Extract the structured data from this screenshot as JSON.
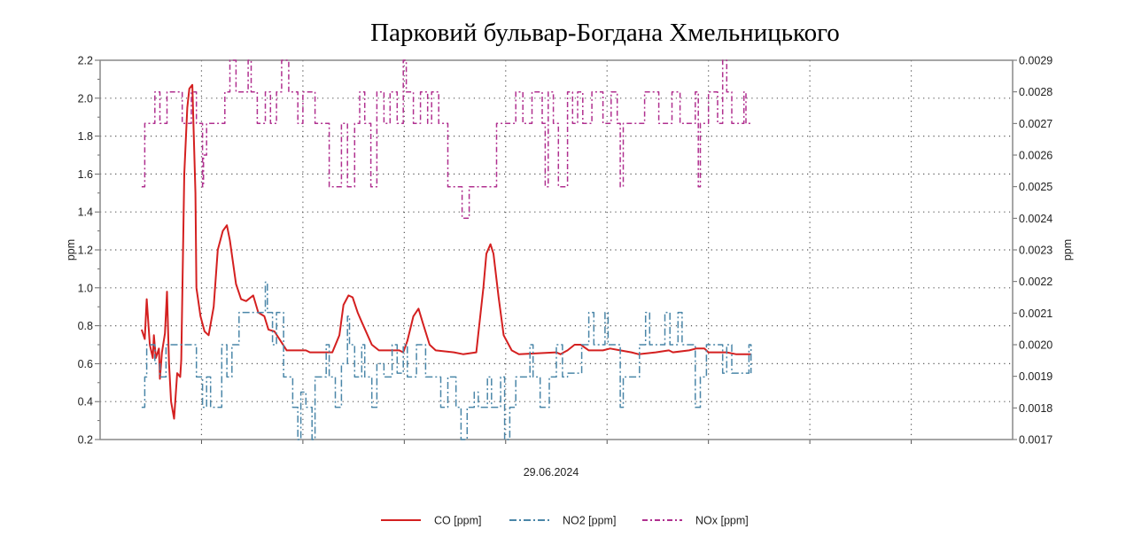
{
  "chart_data": {
    "type": "line",
    "title": "Парковий бульвар-Богдана Хмельницького",
    "xlabel": "29.06.2024",
    "ylabel": "ppm",
    "ylabel_right": "ppm",
    "xlim": [
      0,
      900
    ],
    "ylim": [
      0.2,
      2.2
    ],
    "ylim_right": [
      0.0017,
      0.0029
    ],
    "yticks": [
      "0.2",
      "0.4",
      "0.6",
      "0.8",
      "1.0",
      "1.2",
      "1.4",
      "1.6",
      "1.8",
      "2.0",
      "2.2"
    ],
    "yticks_right": [
      "0.0017",
      "0.0018",
      "0.0019",
      "0.0020",
      "0.0021",
      "0.0022",
      "0.0023",
      "0.0024",
      "0.0025",
      "0.0026",
      "0.0027",
      "0.0028",
      "0.0029"
    ],
    "grid": true,
    "legend_position": "bottom",
    "series": [
      {
        "name": "CO [ppm]",
        "axis": "left",
        "style": "solid",
        "color": "#d42020",
        "step": false,
        "x": [
          41,
          44,
          46,
          49,
          52,
          53,
          55,
          58,
          59,
          61,
          64,
          66,
          68,
          70,
          73,
          76,
          79,
          80,
          83,
          86,
          88,
          91,
          94,
          95,
          99,
          103,
          107,
          112,
          116,
          121,
          125,
          128,
          134,
          139,
          144,
          151,
          156,
          162,
          166,
          172,
          178,
          184,
          203,
          207,
          229,
          236,
          240,
          245,
          249,
          254,
          258,
          268,
          275,
          295,
          299,
          303,
          309,
          314,
          318,
          325,
          331,
          349,
          358,
          371,
          378,
          381,
          385,
          388,
          393,
          398,
          406,
          413,
          450,
          454,
          461,
          468,
          474,
          482,
          496,
          503,
          513,
          524,
          531,
          548,
          561,
          565,
          581,
          588,
          596,
          600,
          618,
          627,
          642
        ],
        "y": [
          0.78,
          0.73,
          0.94,
          0.7,
          0.63,
          0.75,
          0.63,
          0.68,
          0.52,
          0.66,
          0.76,
          0.98,
          0.6,
          0.4,
          0.31,
          0.55,
          0.53,
          0.62,
          1.6,
          1.95,
          2.05,
          2.07,
          1.5,
          1.0,
          0.85,
          0.77,
          0.75,
          0.9,
          1.2,
          1.3,
          1.33,
          1.25,
          1.02,
          0.94,
          0.93,
          0.96,
          0.87,
          0.85,
          0.78,
          0.77,
          0.72,
          0.67,
          0.67,
          0.66,
          0.66,
          0.75,
          0.91,
          0.96,
          0.95,
          0.87,
          0.82,
          0.7,
          0.67,
          0.67,
          0.66,
          0.72,
          0.85,
          0.89,
          0.82,
          0.7,
          0.67,
          0.66,
          0.65,
          0.66,
          1.0,
          1.18,
          1.23,
          1.18,
          0.95,
          0.75,
          0.67,
          0.65,
          0.66,
          0.65,
          0.67,
          0.7,
          0.7,
          0.67,
          0.67,
          0.68,
          0.67,
          0.66,
          0.65,
          0.66,
          0.67,
          0.66,
          0.67,
          0.68,
          0.68,
          0.66,
          0.66,
          0.65,
          0.65
        ]
      },
      {
        "name": "NO2 [ppm]",
        "axis": "left",
        "style": "dashdot",
        "color": "#4a86a8",
        "step": true,
        "x": [
          41,
          44,
          46,
          54,
          59,
          65,
          95,
          101,
          105,
          109,
          120,
          125,
          130,
          137,
          163,
          165,
          170,
          174,
          181,
          190,
          195,
          198,
          203,
          209,
          212,
          223,
          226,
          232,
          238,
          244,
          246,
          251,
          258,
          261,
          268,
          273,
          280,
          288,
          293,
          299,
          303,
          312,
          321,
          336,
          343,
          351,
          356,
          362,
          369,
          373,
          382,
          386,
          395,
          399,
          404,
          410,
          424,
          427,
          434,
          443,
          450,
          456,
          461,
          475,
          482,
          487,
          498,
          501,
          513,
          516,
          532,
          538,
          542,
          557,
          562,
          570,
          574,
          587,
          592,
          598,
          614,
          618,
          623,
          640,
          642
        ],
        "y": [
          0.37,
          0.53,
          0.7,
          0.6,
          0.53,
          0.7,
          0.53,
          0.37,
          0.53,
          0.37,
          0.7,
          0.53,
          0.7,
          0.87,
          1.03,
          0.87,
          0.7,
          0.87,
          0.53,
          0.37,
          0.2,
          0.45,
          0.37,
          0.2,
          0.53,
          0.7,
          0.53,
          0.37,
          0.6,
          0.85,
          0.7,
          0.53,
          0.7,
          0.53,
          0.37,
          0.6,
          0.53,
          0.7,
          0.55,
          0.7,
          0.53,
          0.7,
          0.53,
          0.37,
          0.53,
          0.37,
          0.2,
          0.37,
          0.45,
          0.37,
          0.53,
          0.37,
          0.53,
          0.2,
          0.37,
          0.53,
          0.7,
          0.53,
          0.37,
          0.53,
          0.7,
          0.53,
          0.55,
          0.7,
          0.87,
          0.7,
          0.87,
          0.7,
          0.37,
          0.53,
          0.7,
          0.87,
          0.7,
          0.87,
          0.7,
          0.87,
          0.7,
          0.37,
          0.53,
          0.7,
          0.55,
          0.7,
          0.55,
          0.7,
          0.55
        ]
      },
      {
        "name": "NOx [ppm]",
        "axis": "right",
        "style": "dashdot2",
        "color": "#b0308f",
        "step": true,
        "x": [
          41,
          44,
          54,
          59,
          66,
          76,
          81,
          90,
          95,
          101,
          102,
          105,
          123,
          128,
          134,
          146,
          149,
          155,
          163,
          168,
          174,
          179,
          186,
          195,
          200,
          212,
          226,
          238,
          244,
          251,
          256,
          261,
          267,
          273,
          280,
          286,
          293,
          299,
          302,
          309,
          316,
          323,
          327,
          334,
          343,
          357,
          364,
          373,
          391,
          410,
          417,
          426,
          436,
          439,
          442,
          447,
          452,
          461,
          466,
          471,
          476,
          485,
          496,
          504,
          510,
          513,
          516,
          537,
          551,
          564,
          572,
          587,
          590,
          592,
          600,
          609,
          614,
          618,
          623,
          635,
          637,
          642
        ],
        "y": [
          0.0025,
          0.0027,
          0.0028,
          0.0027,
          0.0028,
          0.0028,
          0.0027,
          0.0028,
          0.0027,
          0.0025,
          0.0026,
          0.0027,
          0.0028,
          0.0029,
          0.0028,
          0.0029,
          0.0028,
          0.0027,
          0.0028,
          0.0027,
          0.0028,
          0.0029,
          0.0028,
          0.0027,
          0.0028,
          0.0027,
          0.0025,
          0.0027,
          0.0025,
          0.0027,
          0.0028,
          0.0027,
          0.0025,
          0.0028,
          0.0027,
          0.0028,
          0.0027,
          0.0029,
          0.0028,
          0.0027,
          0.0028,
          0.0027,
          0.0028,
          0.0027,
          0.0025,
          0.0024,
          0.0025,
          0.0025,
          0.0027,
          0.0028,
          0.0027,
          0.0028,
          0.0027,
          0.0025,
          0.0028,
          0.0027,
          0.0025,
          0.0028,
          0.0027,
          0.0028,
          0.0027,
          0.0028,
          0.0027,
          0.0028,
          0.0027,
          0.0025,
          0.0027,
          0.0028,
          0.0027,
          0.0028,
          0.0027,
          0.0028,
          0.0025,
          0.0027,
          0.0028,
          0.0027,
          0.0029,
          0.0028,
          0.0027,
          0.0028,
          0.0027,
          0.0027
        ]
      }
    ]
  }
}
